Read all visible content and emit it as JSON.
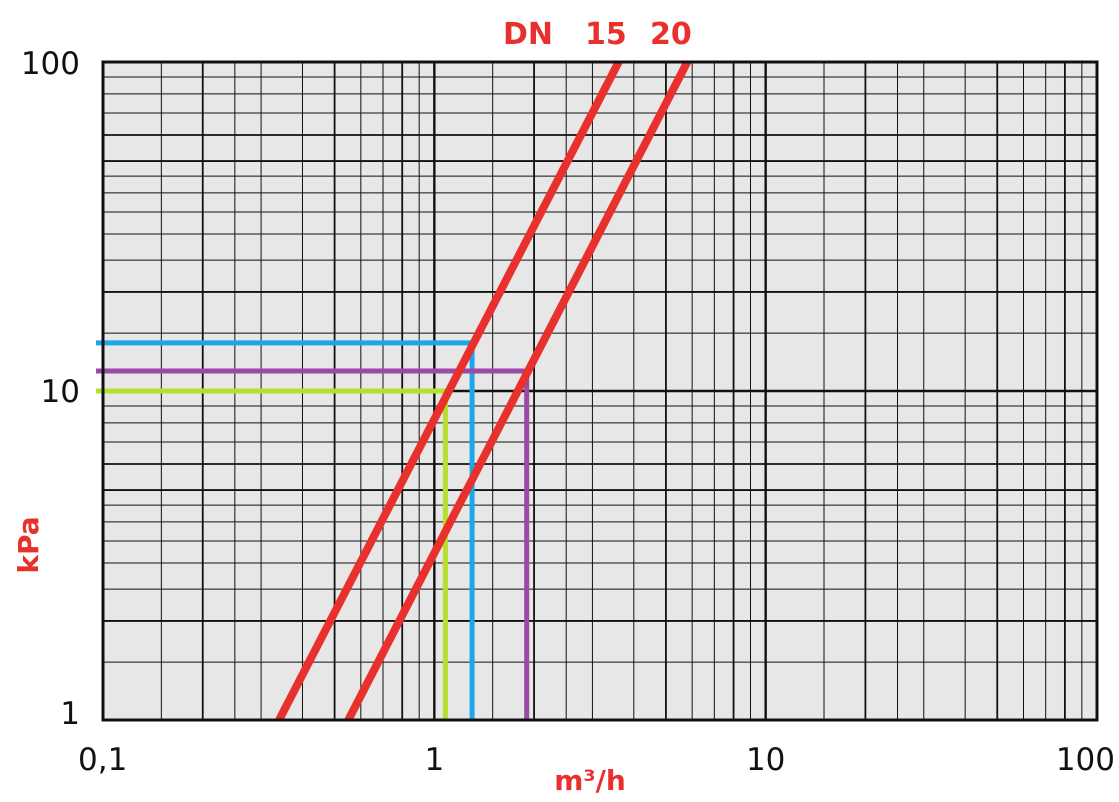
{
  "chart_data": {
    "type": "line",
    "xlabel": "m³/h",
    "ylabel": "kPa",
    "x_scale": "log",
    "y_scale": "log",
    "xlim": [
      0.1,
      100
    ],
    "ylim": [
      1,
      100
    ],
    "x_ticks": [
      {
        "value": 0.1,
        "label": "0,1"
      },
      {
        "value": 1,
        "label": "1"
      },
      {
        "value": 10,
        "label": "10"
      },
      {
        "value": 100,
        "label": "100"
      }
    ],
    "y_ticks": [
      {
        "value": 1,
        "label": "1"
      },
      {
        "value": 10,
        "label": "10"
      },
      {
        "value": 100,
        "label": "100"
      }
    ],
    "grid": true,
    "series_header": "DN",
    "series": [
      {
        "name": "15",
        "color": "#e8302c",
        "x": [
          0.34,
          3.6
        ],
        "y": [
          1,
          100
        ]
      },
      {
        "name": "20",
        "color": "#e8302c",
        "x": [
          0.55,
          5.8
        ],
        "y": [
          1,
          100
        ]
      }
    ],
    "reference_lines": [
      {
        "color": "#1ea7e8",
        "x": 1.3,
        "y": 14
      },
      {
        "color": "#9b4aa8",
        "x": 1.9,
        "y": 11.5
      },
      {
        "color": "#b5e02b",
        "x": 1.08,
        "y": 10
      }
    ]
  }
}
